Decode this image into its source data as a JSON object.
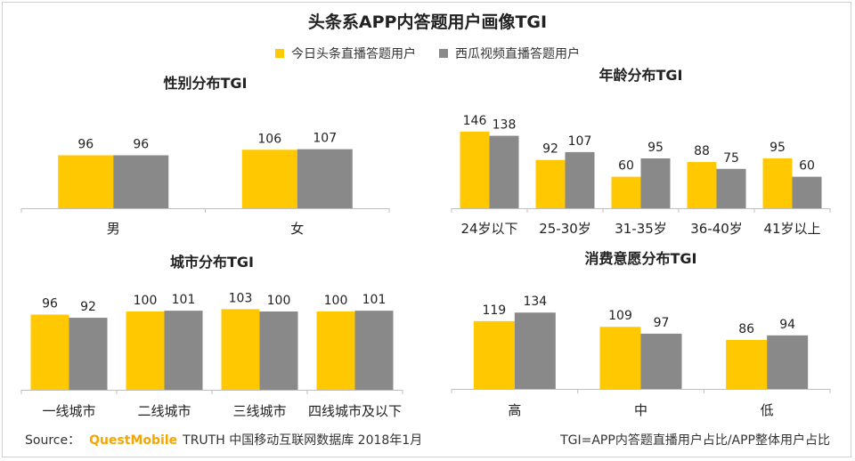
{
  "title": "头条系APP内答题用户画像TGI",
  "legend": {
    "toutiao": "今日头条直播答题用户",
    "xigua": "西瓜视频直播答题用户"
  },
  "colors": {
    "toutiao": "#FFC800",
    "xigua": "#898989",
    "axis": "#bfbfbf",
    "text": "#222222"
  },
  "footer": {
    "source_label": "Source：",
    "brand": "QuestMobile",
    "source_text": "TRUTH 中国移动互联网数据库 2018年1月",
    "note": "TGI=APP内答题直播用户占比/APP整体用户占比"
  },
  "chart_data": [
    {
      "id": "gender",
      "type": "bar",
      "title": "性别分布TGI",
      "categories": [
        "男",
        "女"
      ],
      "series": [
        {
          "name": "今日头条直播答题用户",
          "values": [
            96,
            106
          ]
        },
        {
          "name": "西瓜视频直播答题用户",
          "values": [
            96,
            107
          ]
        }
      ]
    },
    {
      "id": "age",
      "type": "bar",
      "title": "年龄分布TGI",
      "categories": [
        "24岁以下",
        "25-30岁",
        "31-35岁",
        "36-40岁",
        "41岁以上"
      ],
      "series": [
        {
          "name": "今日头条直播答题用户",
          "values": [
            146,
            92,
            60,
            88,
            95
          ]
        },
        {
          "name": "西瓜视频直播答题用户",
          "values": [
            138,
            107,
            95,
            75,
            60
          ]
        }
      ]
    },
    {
      "id": "city",
      "type": "bar",
      "title": "城市分布TGI",
      "categories": [
        "一线城市",
        "二线城市",
        "三线城市",
        "四线城市及以下"
      ],
      "series": [
        {
          "name": "今日头条直播答题用户",
          "values": [
            96,
            100,
            103,
            100
          ]
        },
        {
          "name": "西瓜视频直播答题用户",
          "values": [
            92,
            101,
            100,
            101
          ]
        }
      ]
    },
    {
      "id": "consumption",
      "type": "bar",
      "title": "消费意愿分布TGI",
      "categories": [
        "高",
        "中",
        "低"
      ],
      "series": [
        {
          "name": "今日头条直播答题用户",
          "values": [
            119,
            109,
            86
          ]
        },
        {
          "name": "西瓜视频直播答题用户",
          "values": [
            134,
            97,
            94
          ]
        }
      ]
    }
  ]
}
